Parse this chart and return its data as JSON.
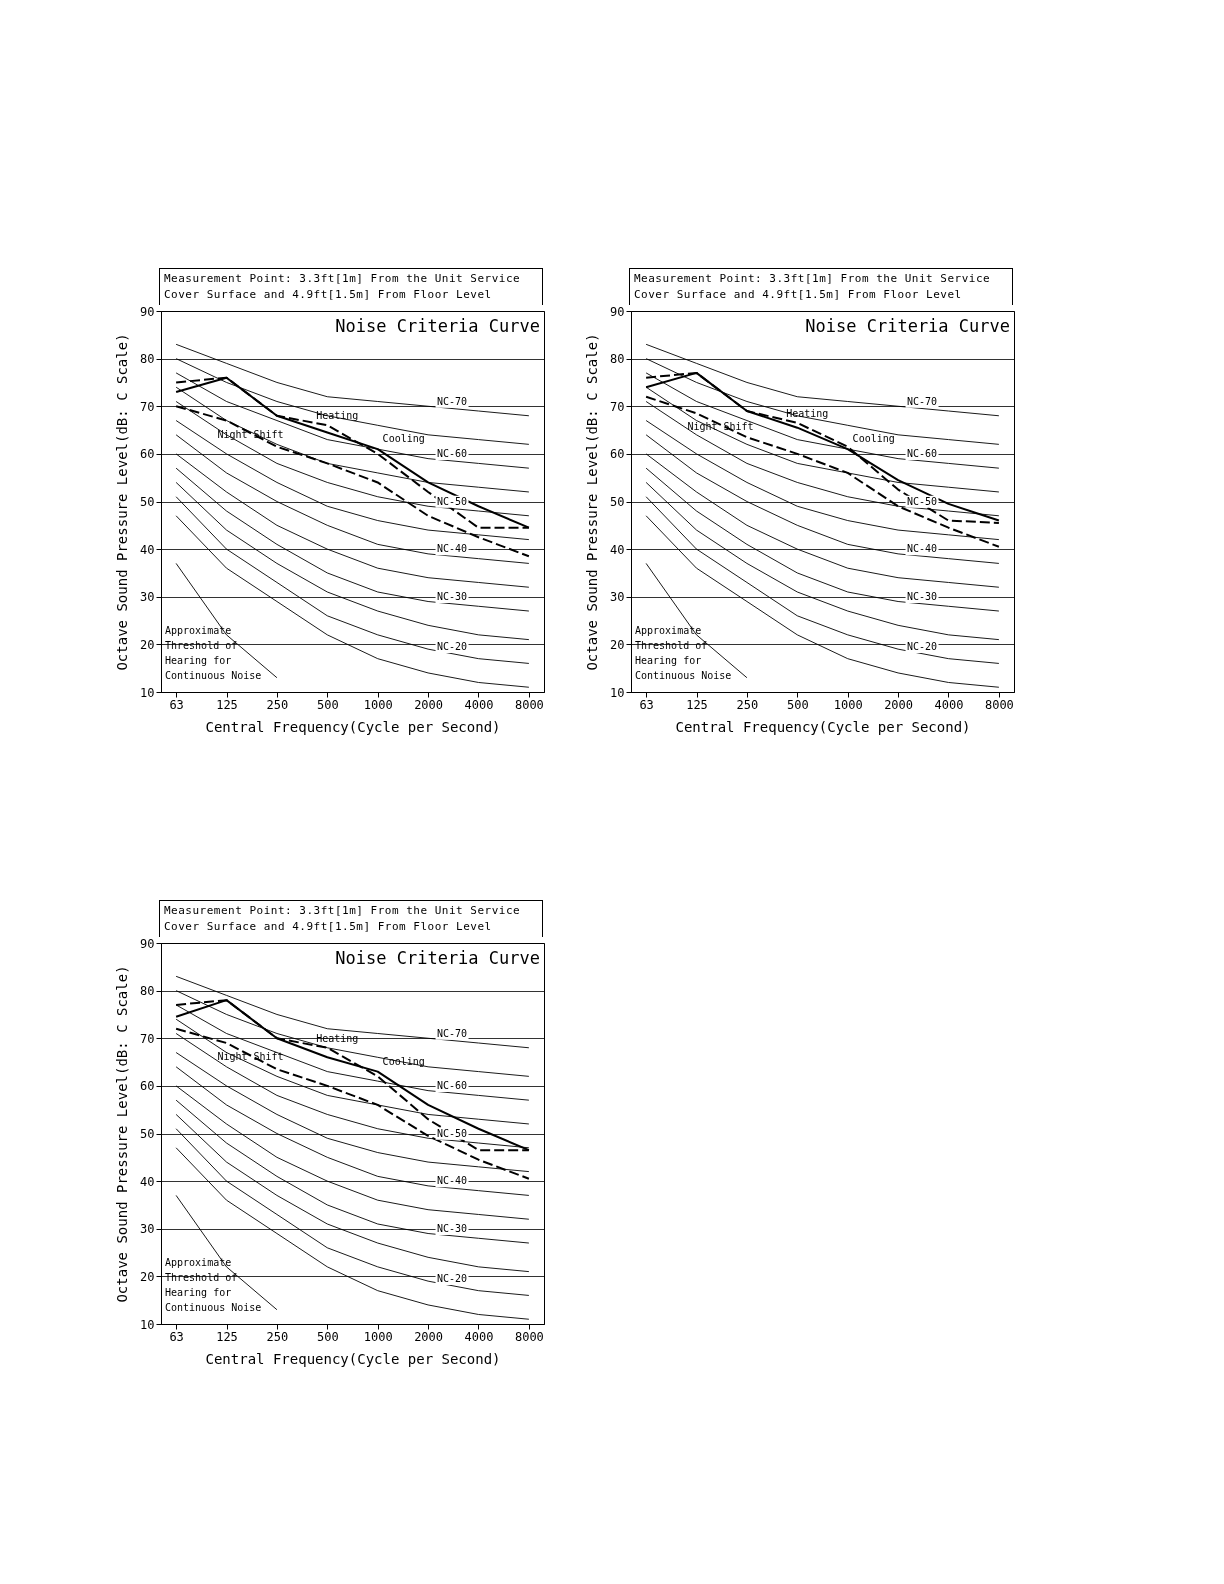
{
  "chart_data": [
    {
      "type": "line",
      "subtitle": "Measurement Point: 3.3ft[1m] From the Unit Service Cover Surface and 4.9ft[1.5m] From Floor Level",
      "xlabel": "Central Frequency(Cycle per Second)",
      "ylabel": "Octave Sound Pressure Level(dB: C Scale)",
      "categories": [
        "63",
        "125",
        "250",
        "500",
        "1000",
        "2000",
        "4000",
        "8000"
      ],
      "ylim": [
        10,
        90
      ],
      "yticks": [
        10,
        20,
        30,
        40,
        50,
        60,
        70,
        80,
        90
      ],
      "grid": "y",
      "legend": false,
      "annotations": [
        "Noise Criteria Curve",
        "Approximate Threshold of Hearing for Continuous Noise"
      ],
      "series": [
        {
          "name": "Heating",
          "color": "#000000",
          "line_style": "dashed",
          "values": [
            75,
            76,
            68,
            66,
            60,
            52,
            44.5,
            44.5
          ]
        },
        {
          "name": "Cooling",
          "color": "#000000",
          "line_style": "solid",
          "values": [
            73,
            76,
            68,
            64.5,
            61,
            54,
            49,
            44.5
          ]
        },
        {
          "name": "Night Shift",
          "color": "#000000",
          "line_style": "dashed",
          "values": [
            70,
            67,
            61.5,
            58,
            54,
            47,
            42.5,
            38.5
          ]
        },
        {
          "name": "NC-70",
          "color": "#000000",
          "values": [
            83,
            79,
            75,
            72,
            71,
            70,
            69,
            68
          ]
        },
        {
          "color": "#000000",
          "values": [
            80,
            75,
            71,
            68,
            66,
            64,
            63,
            62
          ]
        },
        {
          "name": "NC-60",
          "color": "#000000",
          "values": [
            77,
            71,
            67,
            63,
            61,
            59,
            58,
            57
          ]
        },
        {
          "color": "#000000",
          "values": [
            74,
            67,
            62,
            58,
            56,
            54,
            53,
            52
          ]
        },
        {
          "name": "NC-50",
          "color": "#000000",
          "values": [
            71,
            64,
            58,
            54,
            51,
            49,
            48,
            47
          ]
        },
        {
          "color": "#000000",
          "values": [
            67,
            60,
            54,
            49,
            46,
            44,
            43,
            42
          ]
        },
        {
          "name": "NC-40",
          "color": "#000000",
          "values": [
            64,
            56,
            50,
            45,
            41,
            39,
            38,
            37
          ]
        },
        {
          "color": "#000000",
          "values": [
            60,
            52,
            45,
            40,
            36,
            34,
            33,
            32
          ]
        },
        {
          "name": "NC-30",
          "color": "#000000",
          "values": [
            57,
            48,
            41,
            35,
            31,
            29,
            28,
            27
          ]
        },
        {
          "color": "#000000",
          "values": [
            54,
            44,
            37,
            31,
            27,
            24,
            22,
            21
          ]
        },
        {
          "name": "NC-20",
          "color": "#000000",
          "values": [
            51,
            40,
            33,
            26,
            22,
            19,
            17,
            16
          ]
        },
        {
          "color": "#000000",
          "values": [
            47,
            36,
            29,
            22,
            17,
            14,
            12,
            11
          ]
        },
        {
          "color": "#000000",
          "values": [
            37,
            22,
            13,
            null,
            null,
            null,
            null,
            null
          ]
        }
      ]
    },
    {
      "type": "line",
      "subtitle": "Measurement Point: 3.3ft[1m] From the Unit Service Cover Surface and 4.9ft[1.5m] From Floor Level",
      "xlabel": "Central Frequency(Cycle per Second)",
      "ylabel": "Octave Sound Pressure Level(dB: C Scale)",
      "categories": [
        "63",
        "125",
        "250",
        "500",
        "1000",
        "2000",
        "4000",
        "8000"
      ],
      "ylim": [
        10,
        90
      ],
      "yticks": [
        10,
        20,
        30,
        40,
        50,
        60,
        70,
        80,
        90
      ],
      "grid": "y",
      "legend": false,
      "annotations": [
        "Noise Criteria Curve",
        "Approximate Threshold of Hearing for Continuous Noise"
      ],
      "series": [
        {
          "name": "Heating",
          "color": "#000000",
          "line_style": "dashed",
          "values": [
            76,
            77,
            69,
            66.5,
            61.5,
            52.5,
            46,
            45.5
          ]
        },
        {
          "name": "Cooling",
          "color": "#000000",
          "line_style": "solid",
          "values": [
            74,
            77,
            69,
            65.5,
            61,
            54.5,
            49.5,
            46
          ]
        },
        {
          "name": "Night Shift",
          "color": "#000000",
          "line_style": "dashed",
          "values": [
            72,
            68.5,
            63.5,
            60,
            56,
            49,
            44.5,
            40.5
          ]
        },
        {
          "name": "NC-70",
          "color": "#000000",
          "values": [
            83,
            79,
            75,
            72,
            71,
            70,
            69,
            68
          ]
        },
        {
          "color": "#000000",
          "values": [
            80,
            75,
            71,
            68,
            66,
            64,
            63,
            62
          ]
        },
        {
          "name": "NC-60",
          "color": "#000000",
          "values": [
            77,
            71,
            67,
            63,
            61,
            59,
            58,
            57
          ]
        },
        {
          "color": "#000000",
          "values": [
            74,
            67,
            62,
            58,
            56,
            54,
            53,
            52
          ]
        },
        {
          "name": "NC-50",
          "color": "#000000",
          "values": [
            71,
            64,
            58,
            54,
            51,
            49,
            48,
            47
          ]
        },
        {
          "color": "#000000",
          "values": [
            67,
            60,
            54,
            49,
            46,
            44,
            43,
            42
          ]
        },
        {
          "name": "NC-40",
          "color": "#000000",
          "values": [
            64,
            56,
            50,
            45,
            41,
            39,
            38,
            37
          ]
        },
        {
          "color": "#000000",
          "values": [
            60,
            52,
            45,
            40,
            36,
            34,
            33,
            32
          ]
        },
        {
          "name": "NC-30",
          "color": "#000000",
          "values": [
            57,
            48,
            41,
            35,
            31,
            29,
            28,
            27
          ]
        },
        {
          "color": "#000000",
          "values": [
            54,
            44,
            37,
            31,
            27,
            24,
            22,
            21
          ]
        },
        {
          "name": "NC-20",
          "color": "#000000",
          "values": [
            51,
            40,
            33,
            26,
            22,
            19,
            17,
            16
          ]
        },
        {
          "color": "#000000",
          "values": [
            47,
            36,
            29,
            22,
            17,
            14,
            12,
            11
          ]
        },
        {
          "color": "#000000",
          "values": [
            37,
            22,
            13,
            null,
            null,
            null,
            null,
            null
          ]
        }
      ]
    },
    {
      "type": "line",
      "subtitle": "Measurement Point: 3.3ft[1m] From the Unit Service Cover Surface and 4.9ft[1.5m] From Floor Level",
      "xlabel": "Central Frequency(Cycle per Second)",
      "ylabel": "Octave Sound Pressure Level(dB: C Scale)",
      "categories": [
        "63",
        "125",
        "250",
        "500",
        "1000",
        "2000",
        "4000",
        "8000"
      ],
      "ylim": [
        10,
        90
      ],
      "yticks": [
        10,
        20,
        30,
        40,
        50,
        60,
        70,
        80,
        90
      ],
      "grid": "y",
      "legend": false,
      "annotations": [
        "Noise Criteria Curve",
        "Approximate Threshold of Hearing for Continuous Noise"
      ],
      "series": [
        {
          "name": "Heating",
          "color": "#000000",
          "line_style": "dashed",
          "values": [
            77,
            78,
            70,
            68,
            62,
            53,
            46.5,
            46.5
          ]
        },
        {
          "name": "Cooling",
          "color": "#000000",
          "line_style": "solid",
          "values": [
            74.5,
            78,
            70,
            66,
            63,
            56,
            51,
            46.5
          ]
        },
        {
          "name": "Night Shift",
          "color": "#000000",
          "line_style": "dashed",
          "values": [
            72,
            69,
            63.5,
            60,
            56,
            49.5,
            44.5,
            40.5
          ]
        },
        {
          "name": "NC-70",
          "color": "#000000",
          "values": [
            83,
            79,
            75,
            72,
            71,
            70,
            69,
            68
          ]
        },
        {
          "color": "#000000",
          "values": [
            80,
            75,
            71,
            68,
            66,
            64,
            63,
            62
          ]
        },
        {
          "name": "NC-60",
          "color": "#000000",
          "values": [
            77,
            71,
            67,
            63,
            61,
            59,
            58,
            57
          ]
        },
        {
          "color": "#000000",
          "values": [
            74,
            67,
            62,
            58,
            56,
            54,
            53,
            52
          ]
        },
        {
          "name": "NC-50",
          "color": "#000000",
          "values": [
            71,
            64,
            58,
            54,
            51,
            49,
            48,
            47
          ]
        },
        {
          "color": "#000000",
          "values": [
            67,
            60,
            54,
            49,
            46,
            44,
            43,
            42
          ]
        },
        {
          "name": "NC-40",
          "color": "#000000",
          "values": [
            64,
            56,
            50,
            45,
            41,
            39,
            38,
            37
          ]
        },
        {
          "color": "#000000",
          "values": [
            60,
            52,
            45,
            40,
            36,
            34,
            33,
            32
          ]
        },
        {
          "name": "NC-30",
          "color": "#000000",
          "values": [
            57,
            48,
            41,
            35,
            31,
            29,
            28,
            27
          ]
        },
        {
          "color": "#000000",
          "values": [
            54,
            44,
            37,
            31,
            27,
            24,
            22,
            21
          ]
        },
        {
          "name": "NC-20",
          "color": "#000000",
          "values": [
            51,
            40,
            33,
            26,
            22,
            19,
            17,
            16
          ]
        },
        {
          "color": "#000000",
          "values": [
            47,
            36,
            29,
            22,
            17,
            14,
            12,
            11
          ]
        },
        {
          "color": "#000000",
          "values": [
            37,
            22,
            13,
            null,
            null,
            null,
            null,
            null
          ]
        }
      ]
    }
  ]
}
